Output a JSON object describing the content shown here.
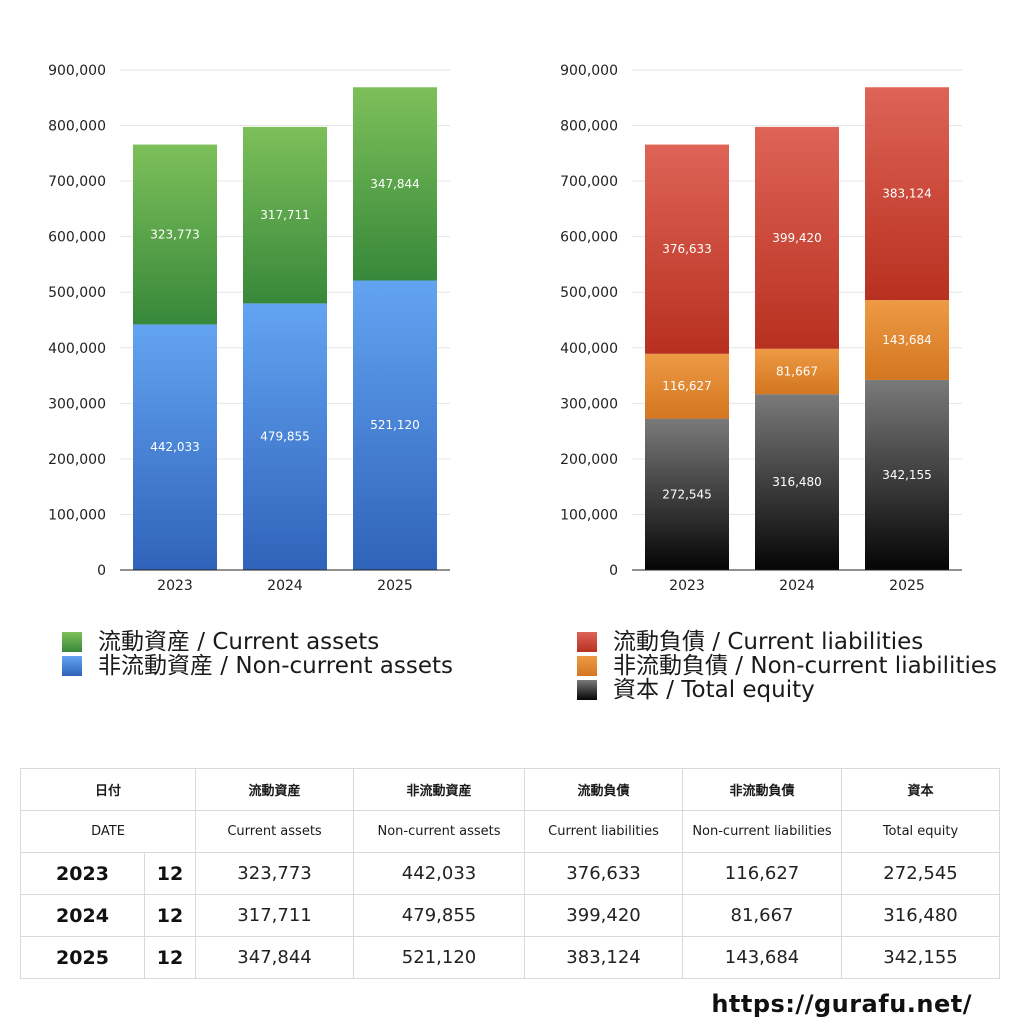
{
  "chart_data": [
    {
      "type": "bar",
      "stacked": true,
      "categories": [
        "2023",
        "2024",
        "2025"
      ],
      "ylim": [
        0,
        900000
      ],
      "y_ticks": [
        "0",
        "100,000",
        "200,000",
        "300,000",
        "400,000",
        "500,000",
        "600,000",
        "700,000",
        "800,000",
        "900,000"
      ],
      "series": [
        {
          "name": "非流動資産 / Non-current assets",
          "values": [
            442033,
            479855,
            521120
          ],
          "labels": [
            "442,033",
            "479,855",
            "521,120"
          ],
          "color_top": "#63a4f2",
          "color_bottom": "#2f63b9"
        },
        {
          "name": "流動資産 / Current assets",
          "values": [
            323773,
            317711,
            347844
          ],
          "labels": [
            "323,773",
            "317,711",
            "347,844"
          ],
          "color_top": "#7dc05a",
          "color_bottom": "#37883a"
        }
      ]
    },
    {
      "type": "bar",
      "stacked": true,
      "categories": [
        "2023",
        "2024",
        "2025"
      ],
      "ylim": [
        0,
        900000
      ],
      "y_ticks": [
        "0",
        "100,000",
        "200,000",
        "300,000",
        "400,000",
        "500,000",
        "600,000",
        "700,000",
        "800,000",
        "900,000"
      ],
      "series": [
        {
          "name": "資本 / Total equity",
          "values": [
            272545,
            316480,
            342155
          ],
          "labels": [
            "272,545",
            "316,480",
            "342,155"
          ],
          "color_top": "#7a7a7a",
          "color_bottom": "#050505"
        },
        {
          "name": "非流動負債 / Non-current liabilities",
          "values": [
            116627,
            81667,
            143684
          ],
          "labels": [
            "116,627",
            "81,667",
            "143,684"
          ],
          "color_top": "#ee9a45",
          "color_bottom": "#d3761f"
        },
        {
          "name": "流動負債 / Current liabilities",
          "values": [
            376633,
            399420,
            383124
          ],
          "labels": [
            "376,633",
            "399,420",
            "383,124"
          ],
          "color_top": "#de6457",
          "color_bottom": "#b8301f"
        }
      ]
    }
  ],
  "legend_left": [
    {
      "label": "流動資産 / Current assets",
      "color": "#4fa33f"
    },
    {
      "label": "非流動資産 / Non-current assets",
      "color": "#4b8ae0"
    }
  ],
  "legend_right": [
    {
      "label": "流動負債 / Current liabilities",
      "color": "#c9402f"
    },
    {
      "label": "非流動負債 / Non-current liabilities",
      "color": "#e58a33"
    },
    {
      "label": "資本 / Total equity",
      "color": "#2a2a2a"
    }
  ],
  "table": {
    "header_jp": [
      "日付",
      "流動資産",
      "非流動資産",
      "流動負債",
      "非流動負債",
      "資本"
    ],
    "header_en": [
      "DATE",
      "Current assets",
      "Non-current assets",
      "Current liabilities",
      "Non-current liabilities",
      "Total equity"
    ],
    "rows": [
      {
        "year": "2023",
        "month": "12",
        "cells": [
          "323,773",
          "442,033",
          "376,633",
          "116,627",
          "272,545"
        ]
      },
      {
        "year": "2024",
        "month": "12",
        "cells": [
          "317,711",
          "479,855",
          "399,420",
          "81,667",
          "316,480"
        ]
      },
      {
        "year": "2025",
        "month": "12",
        "cells": [
          "347,844",
          "521,120",
          "383,124",
          "143,684",
          "342,155"
        ]
      }
    ]
  },
  "footer": "https://gurafu.net/"
}
